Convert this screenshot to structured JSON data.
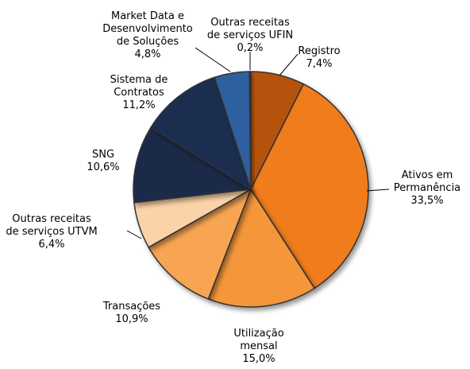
{
  "chart_data": {
    "type": "pie",
    "categories": [
      "Registro",
      "Ativos em Permanência",
      "Utilização mensal",
      "Transações",
      "Outras receitas de serviços UTVM",
      "SNG",
      "Sistema de Contratos",
      "Market Data e Desenvolvimento de Soluções",
      "Outras receitas de serviços UFIN"
    ],
    "values": [
      7.4,
      33.5,
      15.0,
      10.9,
      6.4,
      10.6,
      11.2,
      4.8,
      0.2
    ],
    "value_labels": [
      "7,4%",
      "33,5%",
      "15,0%",
      "10,9%",
      "6,4%",
      "10,6%",
      "11,2%",
      "4,8%",
      "0,2%"
    ],
    "colors": [
      "#b5520f",
      "#f07c1a",
      "#f5963a",
      "#f7a552",
      "#fbd3a8",
      "#1a2a4a",
      "#1b2d50",
      "#2e5f9e",
      "#1f3a64"
    ]
  }
}
